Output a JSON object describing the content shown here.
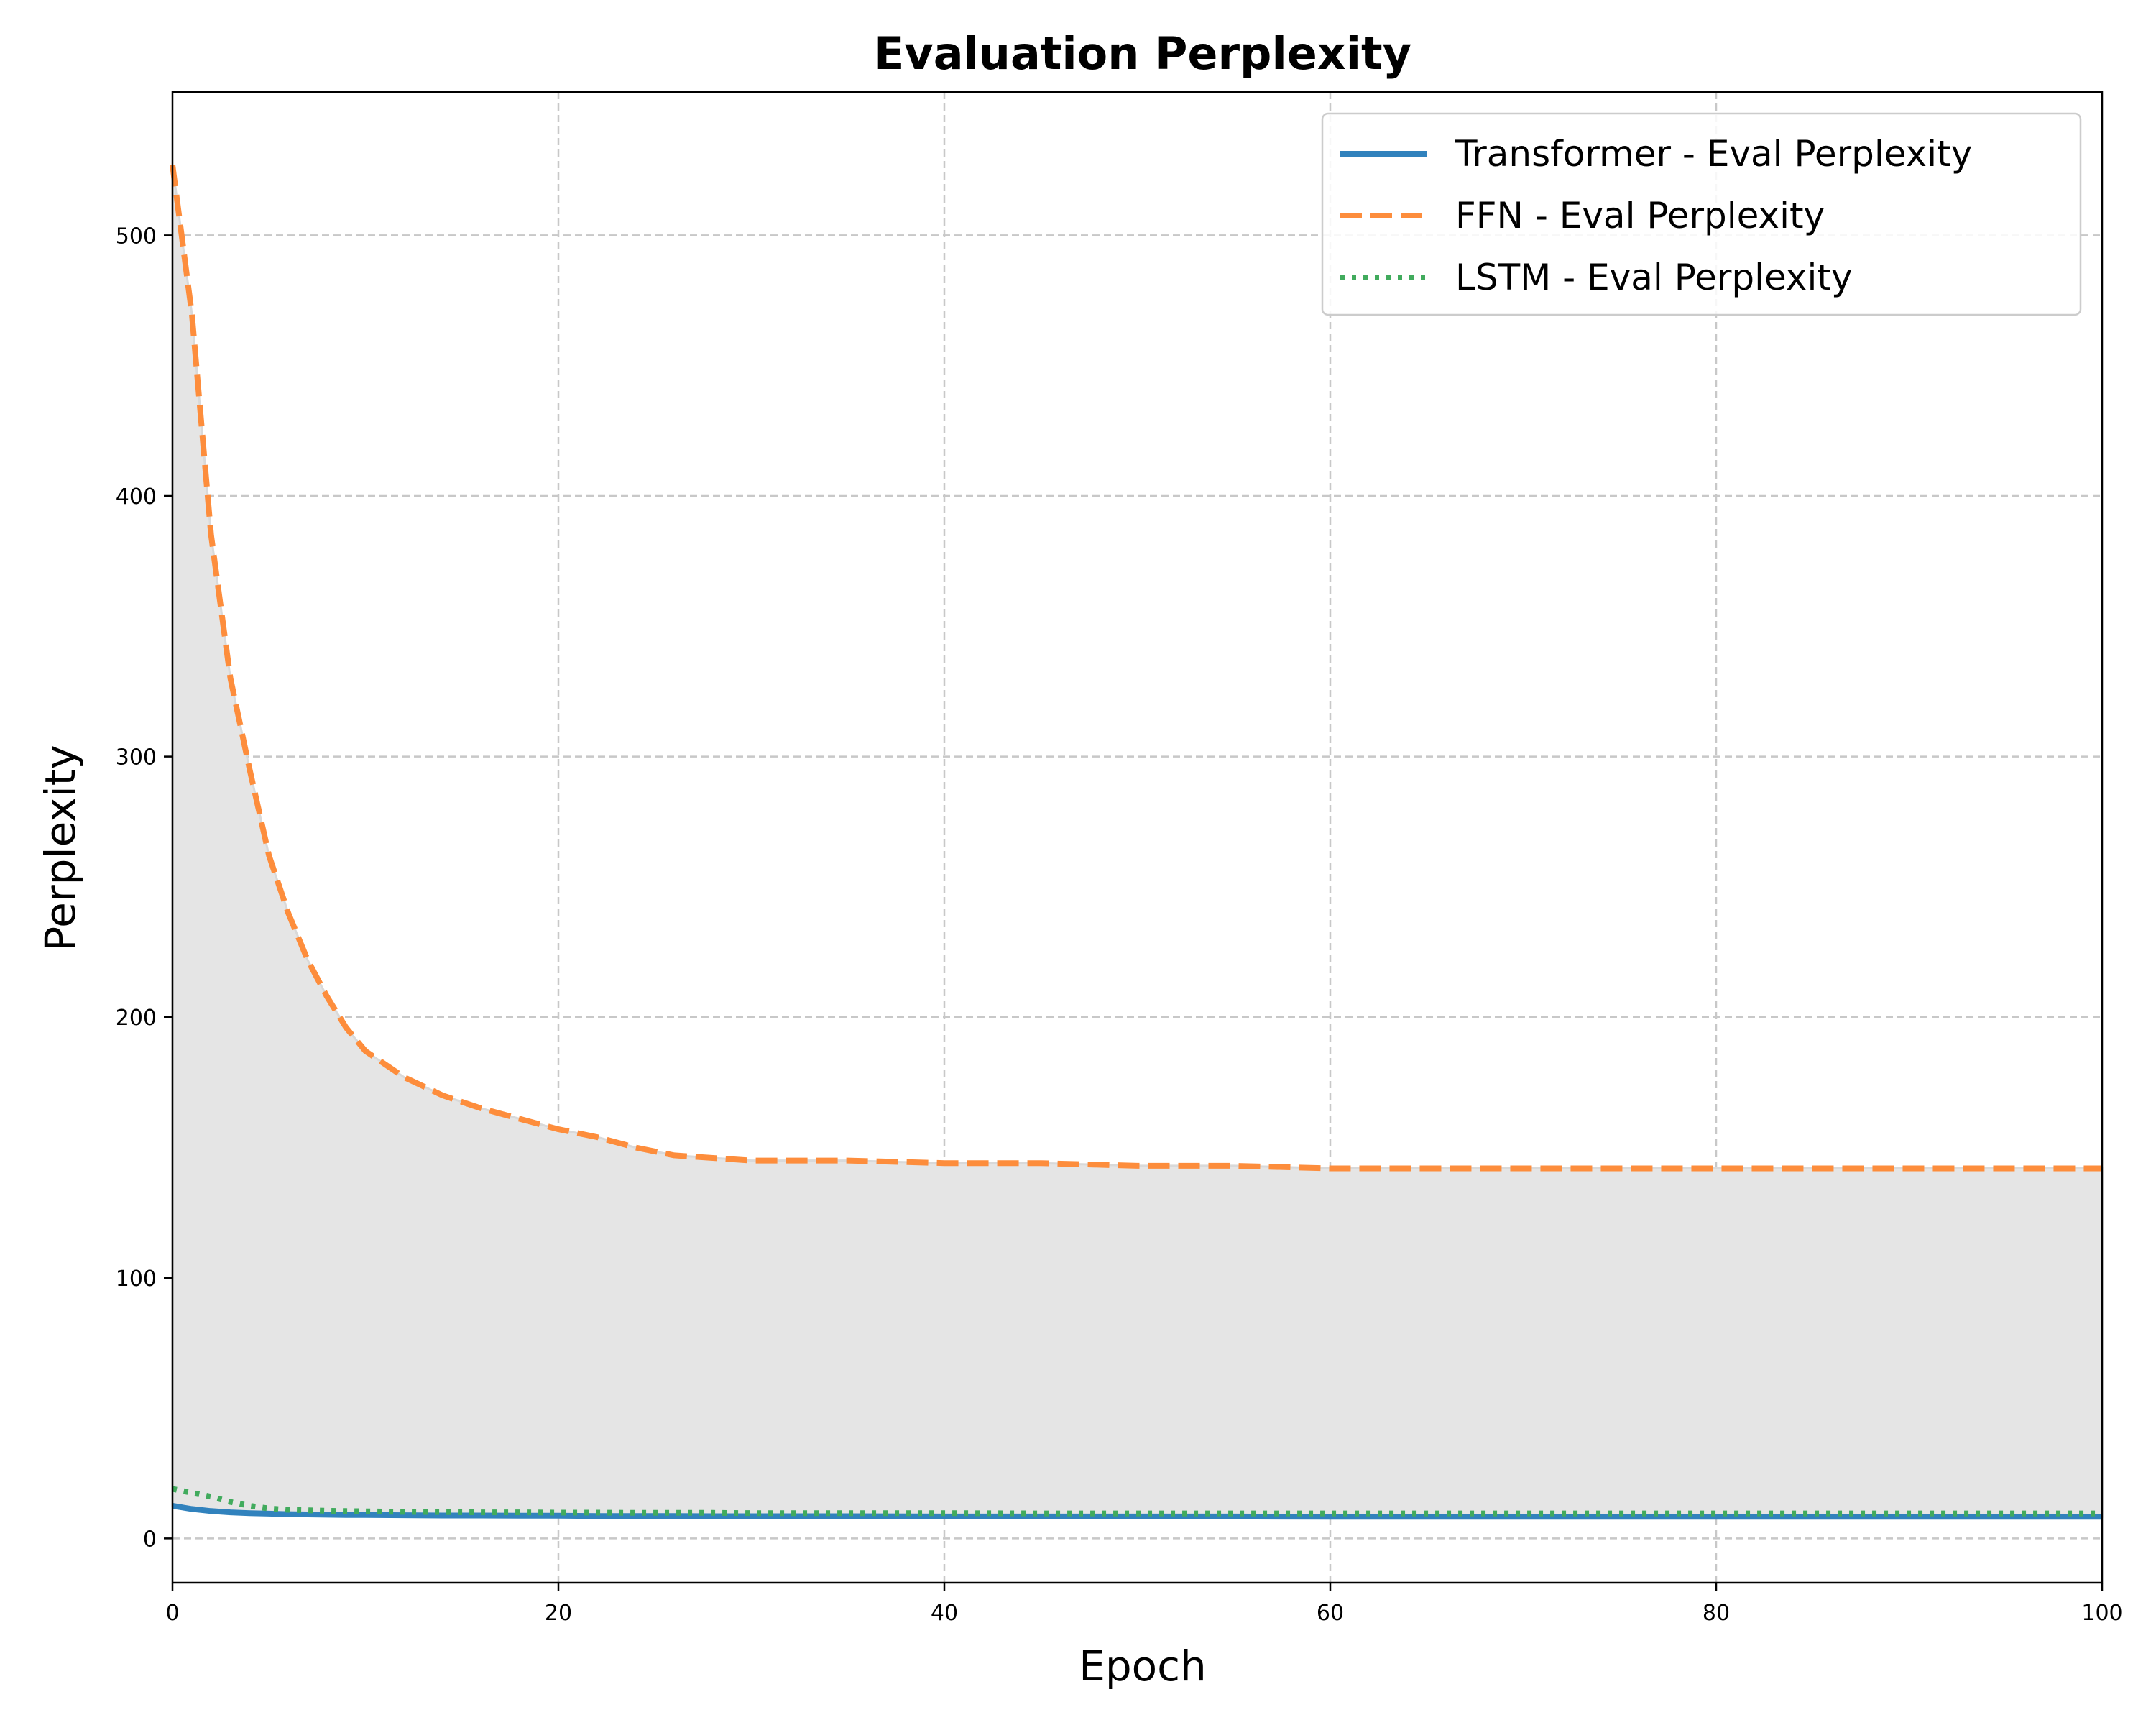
{
  "chart_data": {
    "type": "line",
    "title": "Evaluation Perplexity",
    "xlabel": "Epoch",
    "ylabel": "Perplexity",
    "xlim": [
      0,
      100
    ],
    "ylim": [
      -17,
      555
    ],
    "xticks": [
      0,
      20,
      40,
      60,
      80,
      100
    ],
    "yticks": [
      0,
      100,
      200,
      300,
      400,
      500
    ],
    "grid": true,
    "legend_position": "top-right",
    "fill_between": {
      "lower": "Transformer - Eval Perplexity",
      "upper": "FFN - Eval Perplexity",
      "color": "#e5e5e5"
    },
    "x": [
      0,
      1,
      2,
      3,
      4,
      5,
      6,
      7,
      8,
      9,
      10,
      12,
      14,
      16,
      18,
      20,
      22,
      24,
      26,
      28,
      30,
      35,
      40,
      45,
      50,
      55,
      60,
      65,
      70,
      75,
      80,
      85,
      90,
      95,
      100
    ],
    "series": [
      {
        "name": "Transformer - Eval Perplexity",
        "color": "#3182bd",
        "style": "solid",
        "values": [
          12.5,
          11.3,
          10.5,
          10.0,
          9.7,
          9.5,
          9.3,
          9.2,
          9.1,
          9.0,
          9.0,
          8.9,
          8.8,
          8.8,
          8.7,
          8.7,
          8.6,
          8.6,
          8.6,
          8.5,
          8.5,
          8.5,
          8.4,
          8.4,
          8.4,
          8.4,
          8.3,
          8.3,
          8.3,
          8.3,
          8.3,
          8.3,
          8.3,
          8.3,
          8.3
        ]
      },
      {
        "name": "FFN - Eval Perplexity",
        "color": "#fd8d3c",
        "style": "dashed",
        "values": [
          527,
          470,
          385,
          330,
          295,
          262,
          240,
          222,
          208,
          196,
          187,
          177,
          170,
          165,
          161,
          157,
          154,
          150,
          147,
          146,
          145,
          145,
          144,
          144,
          143,
          143,
          142,
          142,
          142,
          142,
          142,
          142,
          142,
          142,
          142
        ]
      },
      {
        "name": "LSTM - Eval Perplexity",
        "color": "#41ab5d",
        "style": "dotted",
        "values": [
          19,
          17.5,
          16,
          14,
          12.5,
          11.5,
          11,
          10.8,
          10.6,
          10.5,
          10.4,
          10.2,
          10.1,
          10.0,
          10.0,
          9.9,
          9.9,
          9.8,
          9.8,
          9.8,
          9.7,
          9.7,
          9.7,
          9.6,
          9.6,
          9.6,
          9.6,
          9.6,
          9.6,
          9.6,
          9.6,
          9.6,
          9.6,
          9.6,
          9.6
        ]
      }
    ]
  }
}
